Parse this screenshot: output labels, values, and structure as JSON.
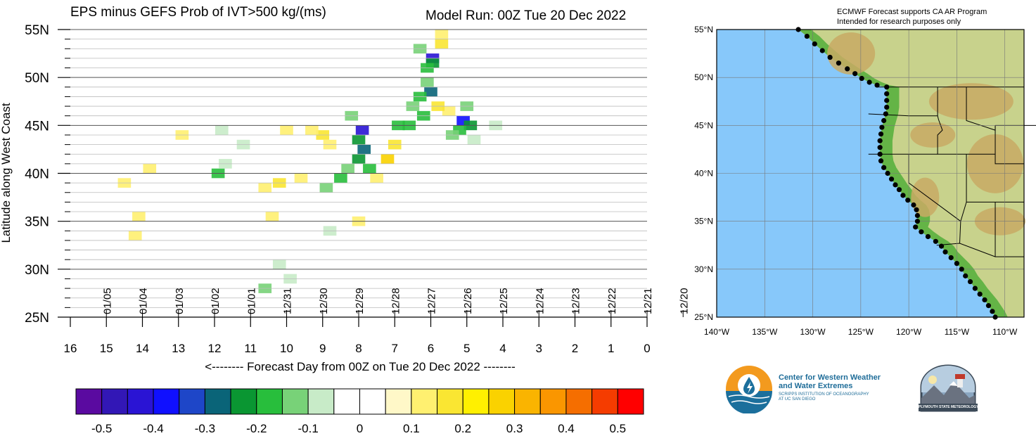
{
  "header": {
    "title_left": "EPS minus GEFS Prob of IVT>500 kg/(ms)",
    "title_right": "Model Run: 00Z Tue 20 Dec 2022"
  },
  "chart_data": {
    "type": "heatmap",
    "title": "EPS minus GEFS Prob of IVT>500 kg/(ms)",
    "xlabel": "<-------- Forecast Day from 00Z on Tue 20 Dec 2022 --------",
    "ylabel": "Latitude along West Coast",
    "xlim": [
      16,
      0
    ],
    "ylim": [
      25,
      55
    ],
    "x_ticks": [
      "16",
      "15",
      "14",
      "13",
      "12",
      "11",
      "10",
      "9",
      "8",
      "7",
      "6",
      "5",
      "4",
      "3",
      "2",
      "1",
      "0"
    ],
    "y_ticks": [
      "25N",
      "30N",
      "35N",
      "40N",
      "45N",
      "50N",
      "55N"
    ],
    "date_ticks": [
      {
        "day": 15,
        "label": "01/05"
      },
      {
        "day": 14,
        "label": "01/04"
      },
      {
        "day": 13,
        "label": "01/03"
      },
      {
        "day": 12,
        "label": "01/02"
      },
      {
        "day": 11,
        "label": "01/01"
      },
      {
        "day": 10,
        "label": "12/31"
      },
      {
        "day": 9,
        "label": "12/30"
      },
      {
        "day": 8,
        "label": "12/29"
      },
      {
        "day": 7,
        "label": "12/28"
      },
      {
        "day": 6,
        "label": "12/27"
      },
      {
        "day": 5,
        "label": "12/26"
      },
      {
        "day": 4,
        "label": "12/25"
      },
      {
        "day": 3,
        "label": "12/24"
      },
      {
        "day": 2,
        "label": "12/23"
      },
      {
        "day": 1,
        "label": "12/22"
      },
      {
        "day": 0,
        "label": "12/21"
      },
      {
        "day": -1,
        "label": "12/20"
      }
    ],
    "colorbar": {
      "tick_labels": [
        "-0.5",
        "-0.4",
        "-0.3",
        "-0.2",
        "-0.1",
        "0",
        "0.1",
        "0.2",
        "0.3",
        "0.4",
        "0.5"
      ],
      "colors": [
        "#5a0aa0",
        "#3217b6",
        "#2a14d4",
        "#1010ff",
        "#1e46c8",
        "#0a6478",
        "#0a9632",
        "#28be3c",
        "#78d278",
        "#c8ebc8",
        "#ffffff",
        "#ffffff",
        "#fff8c8",
        "#fff070",
        "#fae632",
        "#fff000",
        "#fad200",
        "#fab400",
        "#fa9600",
        "#f56e00",
        "#f53c00",
        "#ff0000"
      ]
    },
    "cells": [
      {
        "x": 5.95,
        "y": 52.0,
        "v": -0.45
      },
      {
        "x": 5.95,
        "y": 51.5,
        "v": -0.25
      },
      {
        "x": 6.1,
        "y": 51.0,
        "v": -0.2
      },
      {
        "x": 6.3,
        "y": 53.0,
        "v": -0.15
      },
      {
        "x": 5.7,
        "y": 53.5,
        "v": 0.15
      },
      {
        "x": 5.7,
        "y": 54.5,
        "v": 0.1
      },
      {
        "x": 6.1,
        "y": 49.5,
        "v": -0.15
      },
      {
        "x": 6.0,
        "y": 48.5,
        "v": -0.3
      },
      {
        "x": 6.3,
        "y": 48.0,
        "v": -0.2
      },
      {
        "x": 6.5,
        "y": 47.0,
        "v": -0.15
      },
      {
        "x": 6.2,
        "y": 46.0,
        "v": -0.2
      },
      {
        "x": 6.6,
        "y": 45.0,
        "v": -0.2
      },
      {
        "x": 6.9,
        "y": 45.0,
        "v": -0.2
      },
      {
        "x": 5.5,
        "y": 46.5,
        "v": 0.1
      },
      {
        "x": 5.8,
        "y": 47.0,
        "v": 0.15
      },
      {
        "x": 7.9,
        "y": 44.5,
        "v": -0.45
      },
      {
        "x": 8.0,
        "y": 43.5,
        "v": -0.25
      },
      {
        "x": 7.85,
        "y": 42.5,
        "v": -0.3
      },
      {
        "x": 8.0,
        "y": 41.5,
        "v": -0.25
      },
      {
        "x": 8.3,
        "y": 40.5,
        "v": -0.15
      },
      {
        "x": 8.5,
        "y": 39.5,
        "v": -0.2
      },
      {
        "x": 7.7,
        "y": 40.5,
        "v": -0.2
      },
      {
        "x": 8.9,
        "y": 38.5,
        "v": -0.15
      },
      {
        "x": 8.2,
        "y": 46.0,
        "v": -0.15
      },
      {
        "x": 7.2,
        "y": 41.5,
        "v": 0.25
      },
      {
        "x": 7.0,
        "y": 43.0,
        "v": 0.15
      },
      {
        "x": 7.5,
        "y": 39.5,
        "v": 0.1
      },
      {
        "x": 5.1,
        "y": 45.5,
        "v": -0.4
      },
      {
        "x": 4.9,
        "y": 45.0,
        "v": -0.25
      },
      {
        "x": 5.2,
        "y": 44.5,
        "v": -0.2
      },
      {
        "x": 5.0,
        "y": 47.0,
        "v": -0.15
      },
      {
        "x": 5.4,
        "y": 44.0,
        "v": -0.15
      },
      {
        "x": 4.8,
        "y": 43.5,
        "v": -0.1
      },
      {
        "x": 4.2,
        "y": 45.0,
        "v": -0.1
      },
      {
        "x": 9.0,
        "y": 44.0,
        "v": 0.15
      },
      {
        "x": 9.3,
        "y": 44.5,
        "v": 0.1
      },
      {
        "x": 8.8,
        "y": 43.0,
        "v": 0.1
      },
      {
        "x": 10.0,
        "y": 44.5,
        "v": 0.1
      },
      {
        "x": 9.6,
        "y": 39.5,
        "v": 0.1
      },
      {
        "x": 10.2,
        "y": 39.0,
        "v": 0.15
      },
      {
        "x": 10.6,
        "y": 38.5,
        "v": 0.1
      },
      {
        "x": 11.9,
        "y": 40.0,
        "v": -0.2
      },
      {
        "x": 11.7,
        "y": 41.0,
        "v": -0.1
      },
      {
        "x": 11.8,
        "y": 44.5,
        "v": -0.1
      },
      {
        "x": 11.2,
        "y": 43.0,
        "v": -0.1
      },
      {
        "x": 12.9,
        "y": 44.0,
        "v": 0.1
      },
      {
        "x": 13.8,
        "y": 40.5,
        "v": 0.1
      },
      {
        "x": 14.5,
        "y": 39.0,
        "v": 0.1
      },
      {
        "x": 14.1,
        "y": 35.5,
        "v": 0.1
      },
      {
        "x": 14.2,
        "y": 33.5,
        "v": 0.1
      },
      {
        "x": 10.4,
        "y": 35.5,
        "v": 0.1
      },
      {
        "x": 10.2,
        "y": 30.5,
        "v": -0.1
      },
      {
        "x": 9.9,
        "y": 29.0,
        "v": -0.1
      },
      {
        "x": 10.6,
        "y": 28.0,
        "v": -0.15
      },
      {
        "x": 8.0,
        "y": 35.0,
        "v": 0.1
      },
      {
        "x": 8.8,
        "y": 34.0,
        "v": -0.1
      }
    ]
  },
  "map": {
    "text_line1": "ECMWF Forecast supports CA AR Program",
    "text_line2": "Intended for research purposes only",
    "lat_labels": [
      "55°N",
      "50°N",
      "45°N",
      "40°N",
      "35°N",
      "30°N",
      "25°N"
    ],
    "lon_labels": [
      "140°W",
      "135°W",
      "130°W",
      "125°W",
      "120°W",
      "115°W",
      "110°W"
    ],
    "colors": {
      "ocean": "#87c8fa",
      "land_low": "#64b446",
      "land_mid": "#c8d28c",
      "land_high": "#c8aa64"
    },
    "coast_points": [
      [
        -131.5,
        55
      ],
      [
        -130.6,
        54.3
      ],
      [
        -129.8,
        53.5
      ],
      [
        -129.0,
        52.8
      ],
      [
        -128.2,
        52.1
      ],
      [
        -127.3,
        51.5
      ],
      [
        -126.4,
        50.9
      ],
      [
        -125.6,
        50.4
      ],
      [
        -124.9,
        49.9
      ],
      [
        -124.1,
        49.5
      ],
      [
        -123.3,
        49.2
      ],
      [
        -122.3,
        49.0
      ],
      [
        -122.3,
        48.3
      ],
      [
        -122.3,
        47.6
      ],
      [
        -122.3,
        46.9
      ],
      [
        -122.4,
        46.2
      ],
      [
        -122.6,
        45.5
      ],
      [
        -122.8,
        44.8
      ],
      [
        -122.9,
        44.1
      ],
      [
        -123.0,
        43.4
      ],
      [
        -123.0,
        42.7
      ],
      [
        -123.0,
        42.0
      ],
      [
        -122.9,
        41.3
      ],
      [
        -122.6,
        40.6
      ],
      [
        -122.2,
        40.0
      ],
      [
        -121.8,
        39.4
      ],
      [
        -121.4,
        38.8
      ],
      [
        -121.0,
        38.3
      ],
      [
        -120.6,
        37.7
      ],
      [
        -120.1,
        37.2
      ],
      [
        -119.5,
        36.7
      ],
      [
        -119.2,
        36.2
      ],
      [
        -119.1,
        35.6
      ],
      [
        -119.1,
        35.0
      ],
      [
        -119.3,
        34.4
      ],
      [
        -118.7,
        33.9
      ],
      [
        -118.0,
        33.4
      ],
      [
        -117.2,
        32.9
      ],
      [
        -116.6,
        32.4
      ],
      [
        -116.2,
        31.8
      ],
      [
        -115.6,
        31.2
      ],
      [
        -115.0,
        30.6
      ],
      [
        -114.5,
        30.0
      ],
      [
        -114.1,
        29.3
      ],
      [
        -113.6,
        28.7
      ],
      [
        -113.1,
        28.0
      ],
      [
        -112.6,
        27.4
      ],
      [
        -112.1,
        26.8
      ],
      [
        -111.7,
        26.2
      ],
      [
        -111.3,
        25.6
      ],
      [
        -111.0,
        25.0
      ]
    ]
  },
  "logos": {
    "cw3e_line1": "Center for Western Weather",
    "cw3e_line2": "and Water Extremes",
    "cw3e_line3": "SCRIPPS INSTITUTION OF OCEANOGRAPHY",
    "cw3e_line4": "AT UC SAN DIEGO",
    "psu_text": "PLYMOUTH STATE METEOROLOGY"
  }
}
